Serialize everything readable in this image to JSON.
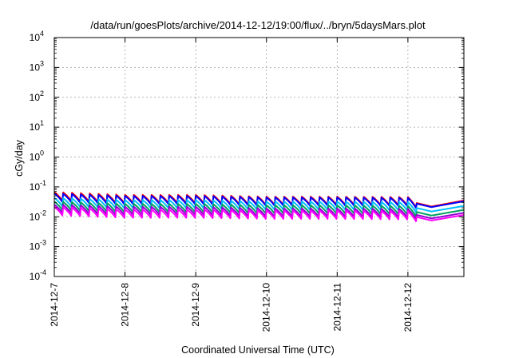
{
  "chart_data": {
    "type": "line",
    "title": "/data/run/goesPlots/archive/2014-12-12/19:00/flux/../bryn/5daysMars.plot",
    "xlabel": "Coordinated Universal Time (UTC)",
    "ylabel": "cGy/day",
    "yscale": "log",
    "ylim_exp": [
      -4,
      4
    ],
    "y_ticks": [
      {
        "base": "10",
        "exp": "-4"
      },
      {
        "base": "10",
        "exp": "-3"
      },
      {
        "base": "10",
        "exp": "-2"
      },
      {
        "base": "10",
        "exp": "-1"
      },
      {
        "base": "10",
        "exp": "0"
      },
      {
        "base": "10",
        "exp": "1"
      },
      {
        "base": "10",
        "exp": "2"
      },
      {
        "base": "10",
        "exp": "3"
      },
      {
        "base": "10",
        "exp": "4"
      }
    ],
    "x_ticks": [
      "2014-12-7",
      "2014-12-8",
      "2014-12-9",
      "2014-12-10",
      "2014-12-11",
      "2014-12-12"
    ],
    "xlim": [
      "2014-12-07 00:00",
      "2014-12-12 19:00"
    ],
    "grid": true,
    "legend": "none",
    "pattern": "sawtooth",
    "series": [
      {
        "color": "#ff0000",
        "values": [
          {
            "x": "2014-12-07",
            "y": 0.05
          },
          {
            "x": "2014-12-08",
            "y": 0.04
          },
          {
            "x": "2014-12-09",
            "y": 0.04
          },
          {
            "x": "2014-12-10",
            "y": 0.035
          },
          {
            "x": "2014-12-11",
            "y": 0.035
          },
          {
            "x": "2014-12-12",
            "y": 0.034
          },
          {
            "x": "2014-12-12 08:00",
            "y": 0.022
          },
          {
            "x": "2014-12-12 19:00",
            "y": 0.035
          }
        ]
      },
      {
        "color": "#0000ff",
        "values": [
          {
            "x": "2014-12-07",
            "y": 0.045
          },
          {
            "x": "2014-12-08",
            "y": 0.037
          },
          {
            "x": "2014-12-09",
            "y": 0.037
          },
          {
            "x": "2014-12-10",
            "y": 0.033
          },
          {
            "x": "2014-12-11",
            "y": 0.033
          },
          {
            "x": "2014-12-12",
            "y": 0.032
          },
          {
            "x": "2014-12-12 08:00",
            "y": 0.021
          },
          {
            "x": "2014-12-12 19:00",
            "y": 0.033
          }
        ]
      },
      {
        "color": "#00bfff",
        "values": [
          {
            "x": "2014-12-07",
            "y": 0.032
          },
          {
            "x": "2014-12-08",
            "y": 0.027
          },
          {
            "x": "2014-12-09",
            "y": 0.027
          },
          {
            "x": "2014-12-10",
            "y": 0.024
          },
          {
            "x": "2014-12-11",
            "y": 0.024
          },
          {
            "x": "2014-12-12",
            "y": 0.023
          },
          {
            "x": "2014-12-12 08:00",
            "y": 0.015
          },
          {
            "x": "2014-12-12 19:00",
            "y": 0.023
          }
        ]
      },
      {
        "color": "#00a060",
        "values": [
          {
            "x": "2014-12-07",
            "y": 0.024
          },
          {
            "x": "2014-12-08",
            "y": 0.02
          },
          {
            "x": "2014-12-09",
            "y": 0.02
          },
          {
            "x": "2014-12-10",
            "y": 0.018
          },
          {
            "x": "2014-12-11",
            "y": 0.018
          },
          {
            "x": "2014-12-12",
            "y": 0.017
          },
          {
            "x": "2014-12-12 08:00",
            "y": 0.011
          },
          {
            "x": "2014-12-12 19:00",
            "y": 0.017
          }
        ]
      },
      {
        "color": "#9400d3",
        "values": [
          {
            "x": "2014-12-07",
            "y": 0.019
          },
          {
            "x": "2014-12-08",
            "y": 0.016
          },
          {
            "x": "2014-12-09",
            "y": 0.016
          },
          {
            "x": "2014-12-10",
            "y": 0.014
          },
          {
            "x": "2014-12-11",
            "y": 0.014
          },
          {
            "x": "2014-12-12",
            "y": 0.0135
          },
          {
            "x": "2014-12-12 08:00",
            "y": 0.0088
          },
          {
            "x": "2014-12-12 19:00",
            "y": 0.0135
          }
        ]
      },
      {
        "color": "#ff00ff",
        "values": [
          {
            "x": "2014-12-07",
            "y": 0.016
          },
          {
            "x": "2014-12-08",
            "y": 0.013
          },
          {
            "x": "2014-12-09",
            "y": 0.013
          },
          {
            "x": "2014-12-10",
            "y": 0.012
          },
          {
            "x": "2014-12-11",
            "y": 0.012
          },
          {
            "x": "2014-12-12",
            "y": 0.0115
          },
          {
            "x": "2014-12-12 08:00",
            "y": 0.0075
          },
          {
            "x": "2014-12-12 19:00",
            "y": 0.0115
          }
        ]
      }
    ]
  }
}
